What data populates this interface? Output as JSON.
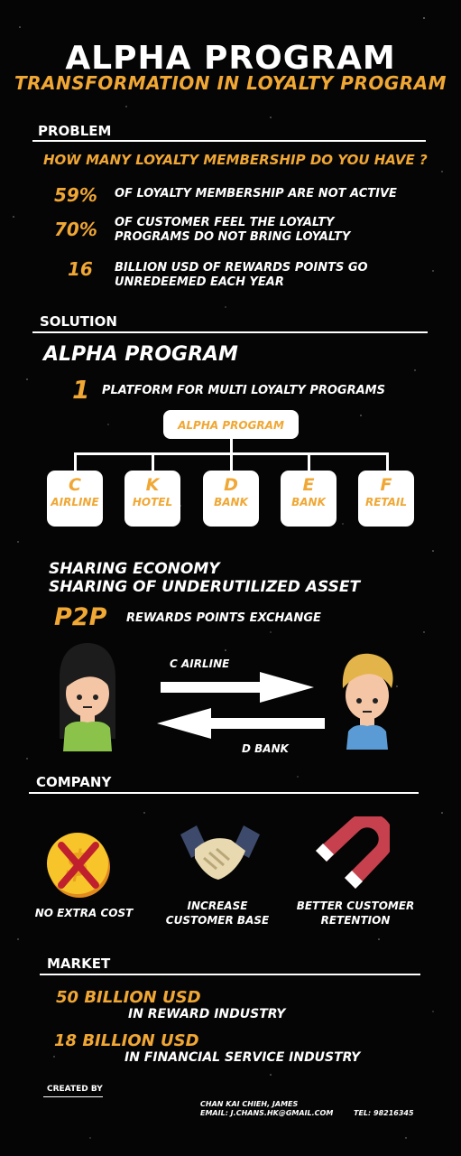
{
  "title": "ALPHA PROGRAM",
  "subtitle": "TRANSFORMATION IN LOYALTY PROGRAM",
  "problem": {
    "heading": "PROBLEM",
    "question": "HOW MANY LOYALTY MEMBERSHIP DO YOU HAVE ?",
    "stats": [
      {
        "value": "59%",
        "text1": "OF LOYALTY MEMBERSHIP ARE NOT ACTIVE",
        "text2": ""
      },
      {
        "value": "70%",
        "text1": "OF CUSTOMER FEEL THE LOYALTY",
        "text2": "PROGRAMS DO NOT BRING LOYALTY"
      },
      {
        "value": "16",
        "text1": "BILLION USD OF REWARDS POINTS GO",
        "text2": "UNREDEEMED EACH YEAR"
      }
    ]
  },
  "solution": {
    "heading": "SOLUTION",
    "name": "ALPHA PROGRAM",
    "platform_number": "1",
    "platform_text": "PLATFORM FOR MULTI LOYALTY PROGRAMS",
    "hub_label": "ALPHA PROGRAM",
    "nodes": [
      {
        "letter": "C",
        "name": "AIRLINE"
      },
      {
        "letter": "K",
        "name": "HOTEL"
      },
      {
        "letter": "D",
        "name": "BANK"
      },
      {
        "letter": "E",
        "name": "BANK"
      },
      {
        "letter": "F",
        "name": "RETAIL"
      }
    ],
    "sharing_line1": "SHARING ECONOMY",
    "sharing_line2": "SHARING OF UNDERUTILIZED ASSET",
    "p2p": "P2P",
    "p2p_text": "REWARDS POINTS EXCHANGE",
    "arrow_right_label": "C AIRLINE",
    "arrow_left_label": "D BANK"
  },
  "company": {
    "heading": "COMPANY",
    "items": [
      {
        "icon": "no-dollar-icon",
        "line1": "NO EXTRA COST",
        "line2": ""
      },
      {
        "icon": "handshake-icon",
        "line1": "INCREASE",
        "line2": "CUSTOMER BASE"
      },
      {
        "icon": "magnet-icon",
        "line1": "BETTER CUSTOMER",
        "line2": "RETENTION"
      }
    ]
  },
  "market": {
    "heading": "MARKET",
    "items": [
      {
        "value": "50 BILLION USD",
        "text": "IN REWARD INDUSTRY"
      },
      {
        "value": "18 BILLION USD",
        "text": "IN FINANCIAL SERVICE INDUSTRY"
      }
    ]
  },
  "footer": {
    "created_by": "CREATED BY",
    "name": "CHAN KAI CHIEH, JAMES",
    "email": "EMAIL: J.CHANS.HK@GMAIL.COM",
    "tel": "TEL: 98216345"
  },
  "colors": {
    "accent": "#f0a734",
    "background": "#050505",
    "text": "#ffffff"
  }
}
